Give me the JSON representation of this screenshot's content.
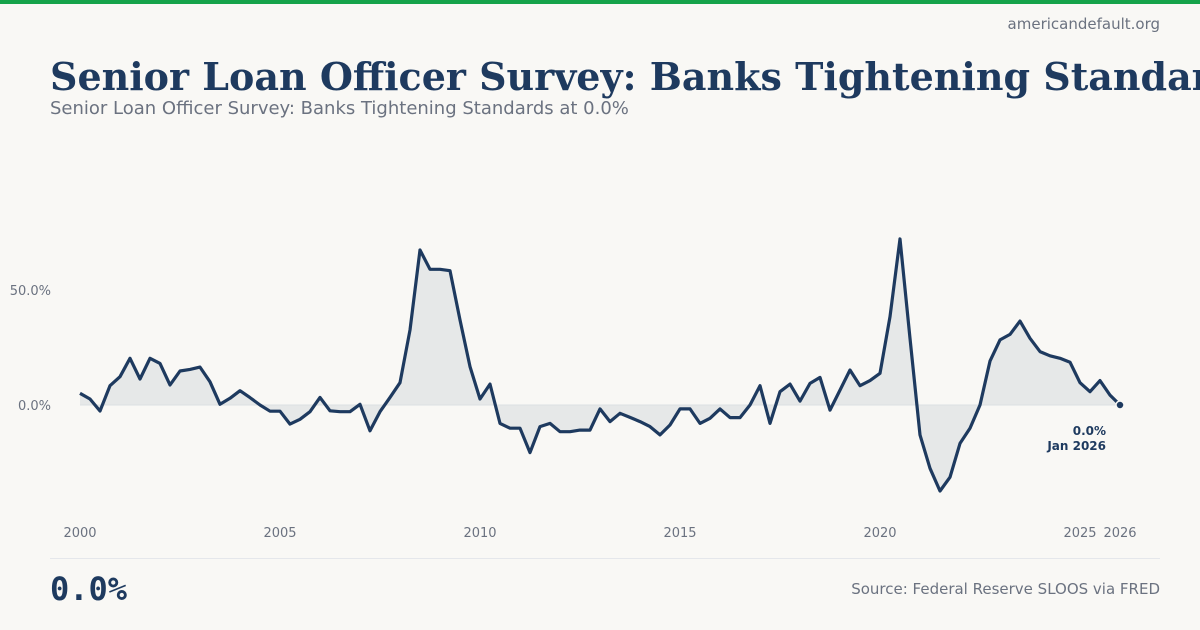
{
  "header": {
    "site": "americandefault.org",
    "title": "Senior Loan Officer Survey: Banks Tightening Standards",
    "subtitle": "Senior Loan Officer Survey: Banks Tightening Standards at 0.0%"
  },
  "footer": {
    "current_value": "0.0%",
    "source": "Source: Federal Reserve SLOOS via FRED"
  },
  "colors": {
    "accent": "#16a34a",
    "line": "#1e3a5f",
    "fill": "#e6e8e8"
  },
  "chart_data": {
    "type": "area",
    "title": "",
    "xlabel": "",
    "ylabel": "",
    "x_ticks": [
      "2000",
      "2005",
      "2010",
      "2015",
      "2020",
      "2025",
      "2026"
    ],
    "y_ticks": [
      {
        "value": 0,
        "label": "0.0%"
      },
      {
        "value": 50,
        "label": "50.0%"
      }
    ],
    "grid": false,
    "annotation": {
      "value": "0.0%",
      "date": "Jan 2026"
    },
    "x": [
      "2000-01",
      "2000-04",
      "2000-07",
      "2000-10",
      "2001-01",
      "2001-04",
      "2001-07",
      "2001-10",
      "2002-01",
      "2002-04",
      "2002-07",
      "2002-10",
      "2003-01",
      "2003-04",
      "2003-07",
      "2003-10",
      "2004-01",
      "2004-04",
      "2004-07",
      "2004-10",
      "2005-01",
      "2005-04",
      "2005-07",
      "2005-10",
      "2006-01",
      "2006-04",
      "2006-07",
      "2006-10",
      "2007-01",
      "2007-04",
      "2007-07",
      "2007-10",
      "2008-01",
      "2008-04",
      "2008-07",
      "2008-10",
      "2009-01",
      "2009-04",
      "2009-07",
      "2009-10",
      "2010-01",
      "2010-04",
      "2010-07",
      "2010-10",
      "2011-01",
      "2011-04",
      "2011-07",
      "2011-10",
      "2012-01",
      "2012-04",
      "2012-07",
      "2012-10",
      "2013-01",
      "2013-04",
      "2013-07",
      "2013-10",
      "2014-01",
      "2014-04",
      "2014-07",
      "2014-10",
      "2015-01",
      "2015-04",
      "2015-07",
      "2015-10",
      "2016-01",
      "2016-04",
      "2016-07",
      "2016-10",
      "2017-01",
      "2017-04",
      "2017-07",
      "2017-10",
      "2018-01",
      "2018-04",
      "2018-07",
      "2018-10",
      "2019-01",
      "2019-04",
      "2019-07",
      "2019-10",
      "2020-01",
      "2020-04",
      "2020-07",
      "2020-10",
      "2021-01",
      "2021-04",
      "2021-07",
      "2021-10",
      "2022-01",
      "2022-04",
      "2022-07",
      "2022-10",
      "2023-01",
      "2023-04",
      "2023-07",
      "2023-10",
      "2024-01",
      "2024-04",
      "2024-07",
      "2024-10",
      "2025-01",
      "2025-04",
      "2025-07",
      "2025-10",
      "2026-01"
    ],
    "values": [
      5.1,
      2.6,
      -2.6,
      8.4,
      12.3,
      20.3,
      11.3,
      20.3,
      18.1,
      8.7,
      14.8,
      15.5,
      16.5,
      10.1,
      0.3,
      2.9,
      6.2,
      3.2,
      0,
      -2.7,
      -2.7,
      -8.3,
      -6.2,
      -2.9,
      3.3,
      -2.5,
      -2.9,
      -2.9,
      0.3,
      -11.2,
      -2.9,
      3.3,
      9.7,
      32.6,
      67.4,
      59.0,
      59.0,
      58.4,
      37.0,
      16.7,
      2.6,
      9.1,
      -8.0,
      -10.1,
      -10.1,
      -20.7,
      -9.4,
      -8.0,
      -11.6,
      -11.6,
      -10.9,
      -10.9,
      -1.7,
      -7.2,
      -3.6,
      -5.4,
      -7.2,
      -9.4,
      -13.0,
      -8.7,
      -1.7,
      -1.7,
      -8.0,
      -5.8,
      -1.7,
      -5.5,
      -5.5,
      0,
      8.4,
      -8.0,
      5.8,
      9.1,
      1.7,
      9.4,
      12.0,
      -2.2,
      6.5,
      15.2,
      8.4,
      10.6,
      13.8,
      38.4,
      72.2,
      29.0,
      -13.0,
      -27.5,
      -37.4,
      -31.4,
      -16.7,
      -10.1,
      0,
      19.1,
      28.3,
      30.7,
      36.5,
      29.0,
      23.2,
      21.4,
      20.3,
      18.6,
      9.7,
      5.8,
      10.6,
      4.3,
      0.0
    ]
  }
}
